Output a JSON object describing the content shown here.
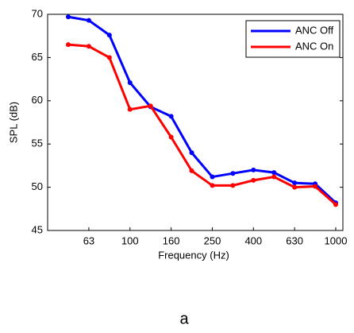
{
  "chart_data": {
    "type": "line",
    "xlabel": "Frequency (Hz)",
    "ylabel": "SPL (dB)",
    "caption": "a",
    "categories": [
      null,
      "63",
      null,
      "100",
      null,
      "160",
      null,
      "250",
      null,
      "400",
      null,
      "630",
      null,
      "1000"
    ],
    "series": [
      {
        "name": "ANC Off",
        "color": "#0000ff",
        "values": [
          69.7,
          69.3,
          67.6,
          62.1,
          59.3,
          58.2,
          54,
          51.2,
          51.6,
          52,
          51.7,
          50.5,
          50.4,
          48.2
        ]
      },
      {
        "name": "ANC On",
        "color": "#ff0000",
        "values": [
          66.5,
          66.3,
          65,
          59,
          59.4,
          55.8,
          51.9,
          50.2,
          50.2,
          50.8,
          51.2,
          50,
          50.1,
          48
        ]
      }
    ],
    "ylim": [
      45,
      70
    ],
    "yticks": [
      45,
      50,
      55,
      60,
      65,
      70
    ],
    "legend": "upper right"
  }
}
